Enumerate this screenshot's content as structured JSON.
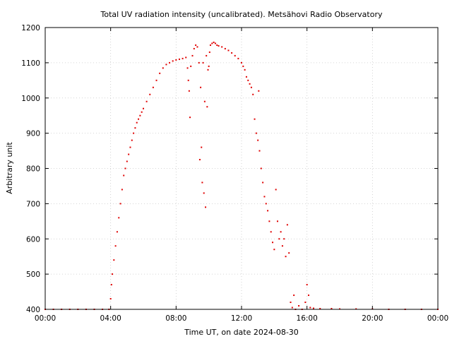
{
  "chart_data": {
    "type": "scatter",
    "title": "Total UV radiation intensity (uncalibrated). Metsähovi Radio Observatory",
    "xlabel": "Time UT, on date 2024-08-30",
    "ylabel": "Arbitrary unit",
    "xlim": [
      0,
      24
    ],
    "ylim": [
      400,
      1200
    ],
    "x_ticks": [
      {
        "value": 0,
        "label": "00:00"
      },
      {
        "value": 4,
        "label": "04:00"
      },
      {
        "value": 8,
        "label": "08:00"
      },
      {
        "value": 12,
        "label": "12:00"
      },
      {
        "value": 16,
        "label": "16:00"
      },
      {
        "value": 20,
        "label": "20:00"
      },
      {
        "value": 24,
        "label": "00:00"
      }
    ],
    "y_ticks": [
      400,
      500,
      600,
      700,
      800,
      900,
      1000,
      1100,
      1200
    ],
    "grid": true,
    "point_color": "#e00000",
    "x_unit": "hours UT",
    "series": [
      {
        "x": [
          0.0,
          0.5,
          1.0,
          1.5,
          2.0,
          2.5,
          3.0,
          3.5,
          3.9,
          4.0,
          4.05,
          4.1,
          4.2,
          4.3,
          4.4,
          4.5,
          4.6,
          4.7,
          4.8,
          4.9,
          5.0,
          5.1,
          5.2,
          5.3,
          5.4,
          5.5,
          5.6,
          5.7,
          5.8,
          5.9,
          6.0,
          6.2,
          6.4,
          6.6,
          6.8,
          7.0,
          7.2,
          7.4,
          7.6,
          7.8,
          8.0,
          8.2,
          8.4,
          8.6,
          8.7,
          8.75,
          8.8,
          8.85,
          8.9,
          9.0,
          9.1,
          9.2,
          9.3,
          9.4,
          9.45,
          9.5,
          9.55,
          9.6,
          9.65,
          9.7,
          9.75,
          9.8,
          9.85,
          9.9,
          9.95,
          10.0,
          10.05,
          10.1,
          10.2,
          10.3,
          10.4,
          10.5,
          10.6,
          10.8,
          11.0,
          11.2,
          11.4,
          11.6,
          11.8,
          12.0,
          12.1,
          12.2,
          12.3,
          12.4,
          12.5,
          12.6,
          12.7,
          12.8,
          12.9,
          13.0,
          13.05,
          13.1,
          13.2,
          13.3,
          13.4,
          13.5,
          13.6,
          13.7,
          13.8,
          13.9,
          14.0,
          14.1,
          14.2,
          14.3,
          14.4,
          14.5,
          14.6,
          14.7,
          14.8,
          14.9,
          15.0,
          15.1,
          15.2,
          15.3,
          15.5,
          15.7,
          15.9,
          16.0,
          16.1,
          16.2,
          16.4,
          16.8,
          17.5,
          18.0,
          19.0,
          20.0,
          21.0,
          22.0,
          23.0,
          24.0
        ],
        "y": [
          400,
          400,
          400,
          400,
          400,
          400,
          400,
          400,
          400,
          430,
          470,
          500,
          540,
          580,
          620,
          660,
          700,
          740,
          780,
          800,
          820,
          840,
          860,
          880,
          900,
          915,
          930,
          940,
          950,
          960,
          970,
          990,
          1010,
          1030,
          1050,
          1070,
          1085,
          1095,
          1100,
          1105,
          1108,
          1110,
          1112,
          1115,
          1085,
          1050,
          1020,
          945,
          1090,
          1120,
          1140,
          1150,
          1145,
          1100,
          825,
          1030,
          860,
          760,
          1100,
          730,
          990,
          690,
          1120,
          975,
          1080,
          1090,
          1130,
          1150,
          1155,
          1158,
          1155,
          1150,
          1148,
          1145,
          1140,
          1135,
          1128,
          1120,
          1112,
          1100,
          1090,
          1080,
          1060,
          1050,
          1040,
          1030,
          1010,
          940,
          900,
          880,
          1020,
          850,
          800,
          760,
          720,
          700,
          680,
          650,
          620,
          590,
          570,
          740,
          650,
          600,
          620,
          580,
          600,
          550,
          640,
          560,
          420,
          405,
          440,
          400,
          410,
          400,
          420,
          470,
          440,
          405,
          403,
          402,
          402,
          401,
          401,
          401,
          400,
          400,
          400,
          400
        ]
      }
    ]
  }
}
